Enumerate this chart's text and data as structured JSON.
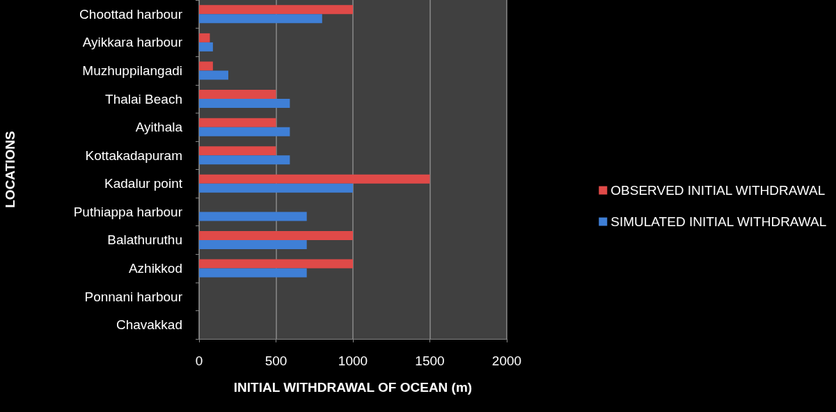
{
  "chart_data": {
    "type": "bar",
    "orientation": "horizontal",
    "xlabel": "INITIAL WITHDRAWAL OF OCEAN (m)",
    "ylabel": "LOCATIONS",
    "categories": [
      "Choottad harbour",
      "Ayikkara harbour",
      "Muzhuppilangadi",
      "Thalai Beach",
      "Ayithala",
      "Kottakadapuram",
      "Kadalur point",
      "Puthiappa harbour",
      "Balathuruthu",
      "Azhikkod",
      "Ponnani harbour",
      "Chavakkad"
    ],
    "series": [
      {
        "name": "OBSERVED INITIAL WITHDRAWAL",
        "color": "#e04a48",
        "values": [
          1000,
          70,
          90,
          500,
          500,
          500,
          1500,
          null,
          1000,
          1000,
          null,
          null
        ]
      },
      {
        "name": "SIMULATED INITIAL WITHDRAWAL",
        "color": "#3f7fd6",
        "values": [
          800,
          90,
          190,
          590,
          590,
          590,
          1000,
          700,
          700,
          700,
          0,
          0
        ]
      }
    ],
    "xlim": [
      0,
      2000
    ],
    "xticks": [
      0,
      500,
      1000,
      1500,
      2000
    ],
    "grid": "x",
    "legend": "right"
  }
}
